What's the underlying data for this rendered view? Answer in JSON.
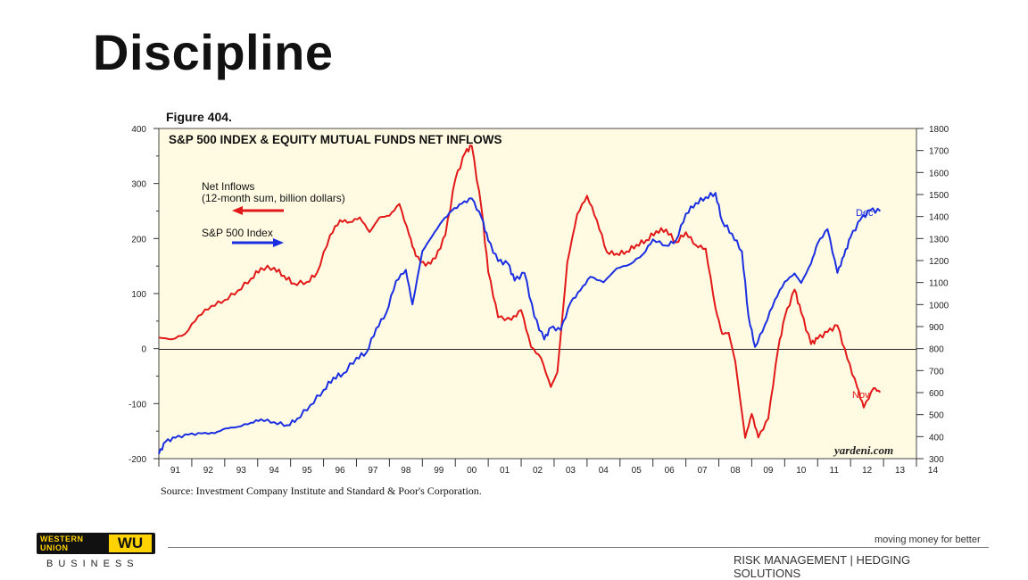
{
  "slide": {
    "title": "Discipline",
    "logo": {
      "name": "WESTERN UNION",
      "mark": "WU",
      "subtitle": "BUSINESS"
    },
    "tagline": "moving money for better",
    "footer": "RISK MANAGEMENT | HEDGING SOLUTIONS"
  },
  "chart_data": {
    "type": "line",
    "figure_label": "Figure 404.",
    "title": "S&P 500 INDEX & EQUITY MUTUAL FUNDS NET INFLOWS",
    "source": "Source: Investment Company Institute and Standard & Poor's Corporation.",
    "watermark": "yardeni.com",
    "x_ticks": [
      "91",
      "92",
      "93",
      "94",
      "95",
      "96",
      "97",
      "98",
      "99",
      "00",
      "01",
      "02",
      "03",
      "04",
      "05",
      "06",
      "07",
      "08",
      "09",
      "10",
      "11",
      "12",
      "13",
      "14"
    ],
    "xlim": [
      1991,
      2014
    ],
    "left_axis": {
      "ylim": [
        -200,
        400
      ],
      "ticks": [
        "400",
        "300",
        "200",
        "100",
        "0",
        "-100",
        "-200"
      ]
    },
    "right_axis": {
      "ylim": [
        300,
        1800
      ],
      "ticks": [
        "1800",
        "1700",
        "1600",
        "1500",
        "1400",
        "1300",
        "1200",
        "1100",
        "1000",
        "900",
        "800",
        "700",
        "600",
        "500",
        "400",
        "300"
      ]
    },
    "legend": {
      "inflows_label_1": "Net Inflows",
      "inflows_label_2": "(12-month sum, billion dollars)",
      "sp_label": "S&P 500 Index"
    },
    "end_labels": {
      "sp": "Dec",
      "inflows": "Nov"
    },
    "series": [
      {
        "name": "Net Inflows",
        "axis": "left",
        "color": "#e11919",
        "x": [
          1991,
          1991.4,
          1991.8,
          1992.2,
          1992.6,
          1993,
          1993.4,
          1993.8,
          1994.1,
          1994.5,
          1994.8,
          1995.1,
          1995.5,
          1995.8,
          1996.2,
          1996.5,
          1996.8,
          1997.1,
          1997.4,
          1997.7,
          1998,
          1998.3,
          1998.6,
          1998.8,
          1999.1,
          1999.4,
          1999.7,
          2000,
          2000.3,
          2000.5,
          2000.8,
          2001,
          2001.3,
          2001.7,
          2002,
          2002.3,
          2002.6,
          2002.9,
          2003.1,
          2003.4,
          2003.7,
          2004,
          2004.3,
          2004.6,
          2004.9,
          2005.2,
          2005.5,
          2005.8,
          2006.1,
          2006.4,
          2006.7,
          2007,
          2007.3,
          2007.6,
          2007.9,
          2008.1,
          2008.3,
          2008.5,
          2008.8,
          2009,
          2009.2,
          2009.5,
          2009.8,
          2010,
          2010.3,
          2010.5,
          2010.8,
          2011,
          2011.3,
          2011.6,
          2011.9,
          2012.2,
          2012.4,
          2012.7,
          2012.9
        ],
        "values": [
          20,
          20,
          30,
          60,
          75,
          85,
          105,
          130,
          150,
          148,
          130,
          115,
          120,
          140,
          210,
          235,
          228,
          235,
          210,
          240,
          245,
          265,
          205,
          165,
          148,
          165,
          210,
          310,
          355,
          365,
          250,
          140,
          60,
          55,
          70,
          0,
          -20,
          -70,
          -40,
          160,
          245,
          275,
          230,
          175,
          175,
          180,
          190,
          195,
          210,
          215,
          195,
          215,
          190,
          180,
          70,
          25,
          30,
          -20,
          -160,
          -120,
          -165,
          -130,
          0,
          60,
          110,
          65,
          5,
          15,
          30,
          45,
          -15,
          -70,
          -110,
          -75,
          -80
        ]
      },
      {
        "name": "S&P 500 Index",
        "axis": "right",
        "color": "#1b2fe0",
        "x": [
          1991,
          1991.2,
          1991.5,
          1991.9,
          1992.3,
          1992.7,
          1993,
          1993.4,
          1993.8,
          1994.1,
          1994.5,
          1994.9,
          1995.2,
          1995.6,
          1996,
          1996.3,
          1996.6,
          1997,
          1997.3,
          1997.6,
          1997.9,
          1998.2,
          1998.5,
          1998.7,
          1999,
          1999.3,
          1999.6,
          1999.9,
          2000.2,
          2000.5,
          2000.8,
          2001,
          2001.3,
          2001.6,
          2001.8,
          2002.1,
          2002.4,
          2002.7,
          2002.9,
          2003.2,
          2003.5,
          2003.8,
          2004.1,
          2004.5,
          2004.9,
          2005.3,
          2005.7,
          2006,
          2006.4,
          2006.7,
          2007,
          2007.3,
          2007.6,
          2007.9,
          2008.1,
          2008.4,
          2008.7,
          2008.9,
          2009.1,
          2009.4,
          2009.7,
          2010,
          2010.3,
          2010.5,
          2010.8,
          2011,
          2011.3,
          2011.6,
          2011.8,
          2012,
          2012.3,
          2012.6,
          2012.9
        ],
        "values": [
          330,
          380,
          390,
          400,
          410,
          420,
          445,
          450,
          460,
          470,
          460,
          455,
          490,
          550,
          610,
          660,
          680,
          760,
          790,
          900,
          960,
          1100,
          1150,
          1000,
          1250,
          1320,
          1380,
          1420,
          1450,
          1480,
          1400,
          1300,
          1200,
          1180,
          1100,
          1140,
          950,
          850,
          900,
          880,
          1000,
          1060,
          1130,
          1110,
          1170,
          1180,
          1220,
          1290,
          1270,
          1300,
          1420,
          1460,
          1480,
          1500,
          1380,
          1330,
          1250,
          950,
          800,
          900,
          1020,
          1110,
          1150,
          1100,
          1180,
          1270,
          1340,
          1150,
          1230,
          1310,
          1380,
          1420,
          1420
        ]
      }
    ]
  }
}
